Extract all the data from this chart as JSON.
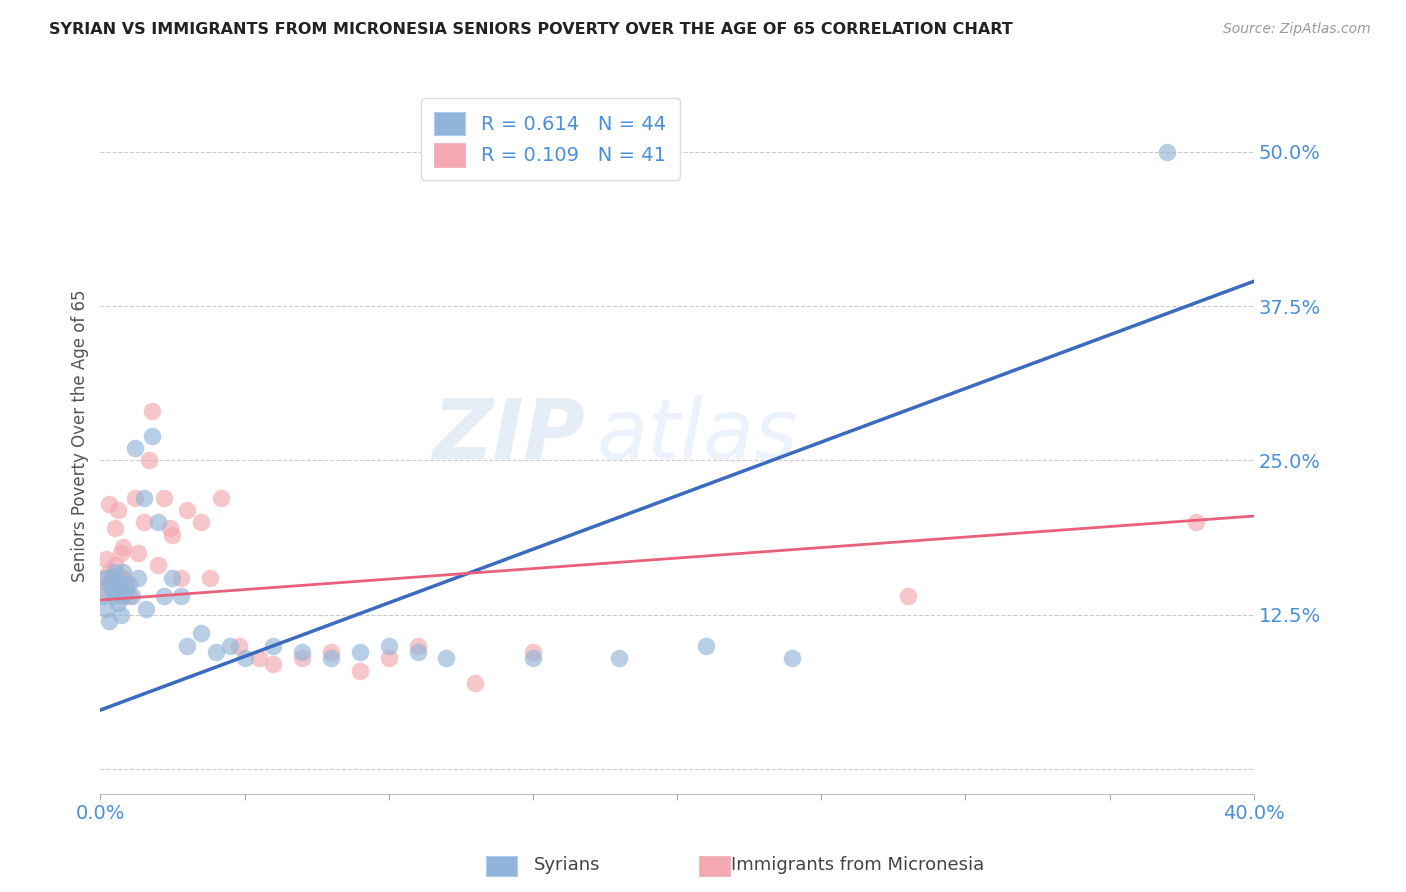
{
  "title": "SYRIAN VS IMMIGRANTS FROM MICRONESIA SENIORS POVERTY OVER THE AGE OF 65 CORRELATION CHART",
  "source": "Source: ZipAtlas.com",
  "ylabel": "Seniors Poverty Over the Age of 65",
  "xlim": [
    0.0,
    0.4
  ],
  "ylim": [
    -0.02,
    0.56
  ],
  "xticks": [
    0.0,
    0.05,
    0.1,
    0.15,
    0.2,
    0.25,
    0.3,
    0.35,
    0.4
  ],
  "ytick_positions": [
    0.0,
    0.125,
    0.25,
    0.375,
    0.5
  ],
  "yticklabels": [
    "",
    "12.5%",
    "25.0%",
    "37.5%",
    "50.0%"
  ],
  "watermark_zip": "ZIP",
  "watermark_atlas": "atlas",
  "blue_color": "#92b4d8",
  "pink_color": "#f4a8b0",
  "blue_line_color": "#3a6bbf",
  "pink_line_color": "#e8607a",
  "tick_color": "#4a90d9",
  "R_blue": 0.614,
  "N_blue": 44,
  "R_pink": 0.109,
  "N_pink": 41,
  "legend_label_blue": "Syrians",
  "legend_label_pink": "Immigrants from Micronesia",
  "blue_line_x0": 0.0,
  "blue_line_y0": 0.048,
  "blue_line_x1": 0.4,
  "blue_line_y1": 0.395,
  "pink_line_x0": 0.0,
  "pink_line_y0": 0.137,
  "pink_line_x1": 0.4,
  "pink_line_y1": 0.205,
  "blue_x": [
    0.001,
    0.002,
    0.002,
    0.003,
    0.003,
    0.004,
    0.004,
    0.005,
    0.005,
    0.006,
    0.006,
    0.007,
    0.007,
    0.008,
    0.008,
    0.009,
    0.01,
    0.011,
    0.012,
    0.013,
    0.015,
    0.016,
    0.018,
    0.02,
    0.022,
    0.025,
    0.028,
    0.03,
    0.035,
    0.04,
    0.045,
    0.05,
    0.06,
    0.07,
    0.08,
    0.09,
    0.1,
    0.11,
    0.12,
    0.15,
    0.18,
    0.21,
    0.24,
    0.37
  ],
  "blue_y": [
    0.14,
    0.155,
    0.13,
    0.15,
    0.12,
    0.155,
    0.145,
    0.14,
    0.16,
    0.145,
    0.135,
    0.15,
    0.125,
    0.16,
    0.14,
    0.145,
    0.15,
    0.14,
    0.26,
    0.155,
    0.22,
    0.13,
    0.27,
    0.2,
    0.14,
    0.155,
    0.14,
    0.1,
    0.11,
    0.095,
    0.1,
    0.09,
    0.1,
    0.095,
    0.09,
    0.095,
    0.1,
    0.095,
    0.09,
    0.09,
    0.09,
    0.1,
    0.09,
    0.5
  ],
  "pink_x": [
    0.001,
    0.002,
    0.002,
    0.003,
    0.003,
    0.004,
    0.005,
    0.005,
    0.006,
    0.007,
    0.007,
    0.008,
    0.008,
    0.009,
    0.01,
    0.012,
    0.013,
    0.015,
    0.017,
    0.018,
    0.02,
    0.022,
    0.024,
    0.025,
    0.028,
    0.03,
    0.035,
    0.038,
    0.042,
    0.048,
    0.055,
    0.06,
    0.07,
    0.08,
    0.09,
    0.1,
    0.11,
    0.13,
    0.15,
    0.28,
    0.38
  ],
  "pink_y": [
    0.155,
    0.145,
    0.17,
    0.215,
    0.16,
    0.155,
    0.195,
    0.165,
    0.21,
    0.175,
    0.155,
    0.18,
    0.155,
    0.15,
    0.14,
    0.22,
    0.175,
    0.2,
    0.25,
    0.29,
    0.165,
    0.22,
    0.195,
    0.19,
    0.155,
    0.21,
    0.2,
    0.155,
    0.22,
    0.1,
    0.09,
    0.085,
    0.09,
    0.095,
    0.08,
    0.09,
    0.1,
    0.07,
    0.095,
    0.14,
    0.2
  ]
}
